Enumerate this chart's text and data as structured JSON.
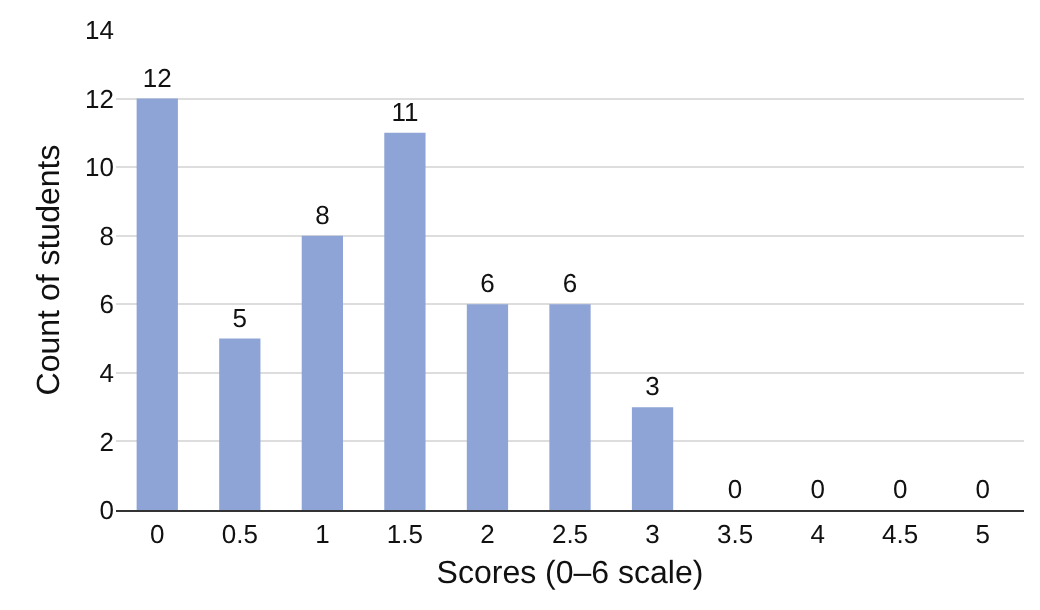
{
  "chart_data": {
    "type": "bar",
    "xlabel": "Scores (0–6 scale)",
    "ylabel": "Count of students",
    "categories": [
      "0",
      "0.5",
      "1",
      "1.5",
      "2",
      "2.5",
      "3",
      "3.5",
      "4",
      "4.5",
      "5"
    ],
    "values": [
      12,
      5,
      8,
      11,
      6,
      6,
      3,
      0,
      0,
      0,
      0
    ],
    "color": "#8ea3d6",
    "ylim": [
      0,
      14
    ],
    "yticks": [
      0,
      2,
      4,
      6,
      8,
      10,
      12,
      14
    ],
    "grid": "y",
    "data_labels": true,
    "legend": false
  }
}
